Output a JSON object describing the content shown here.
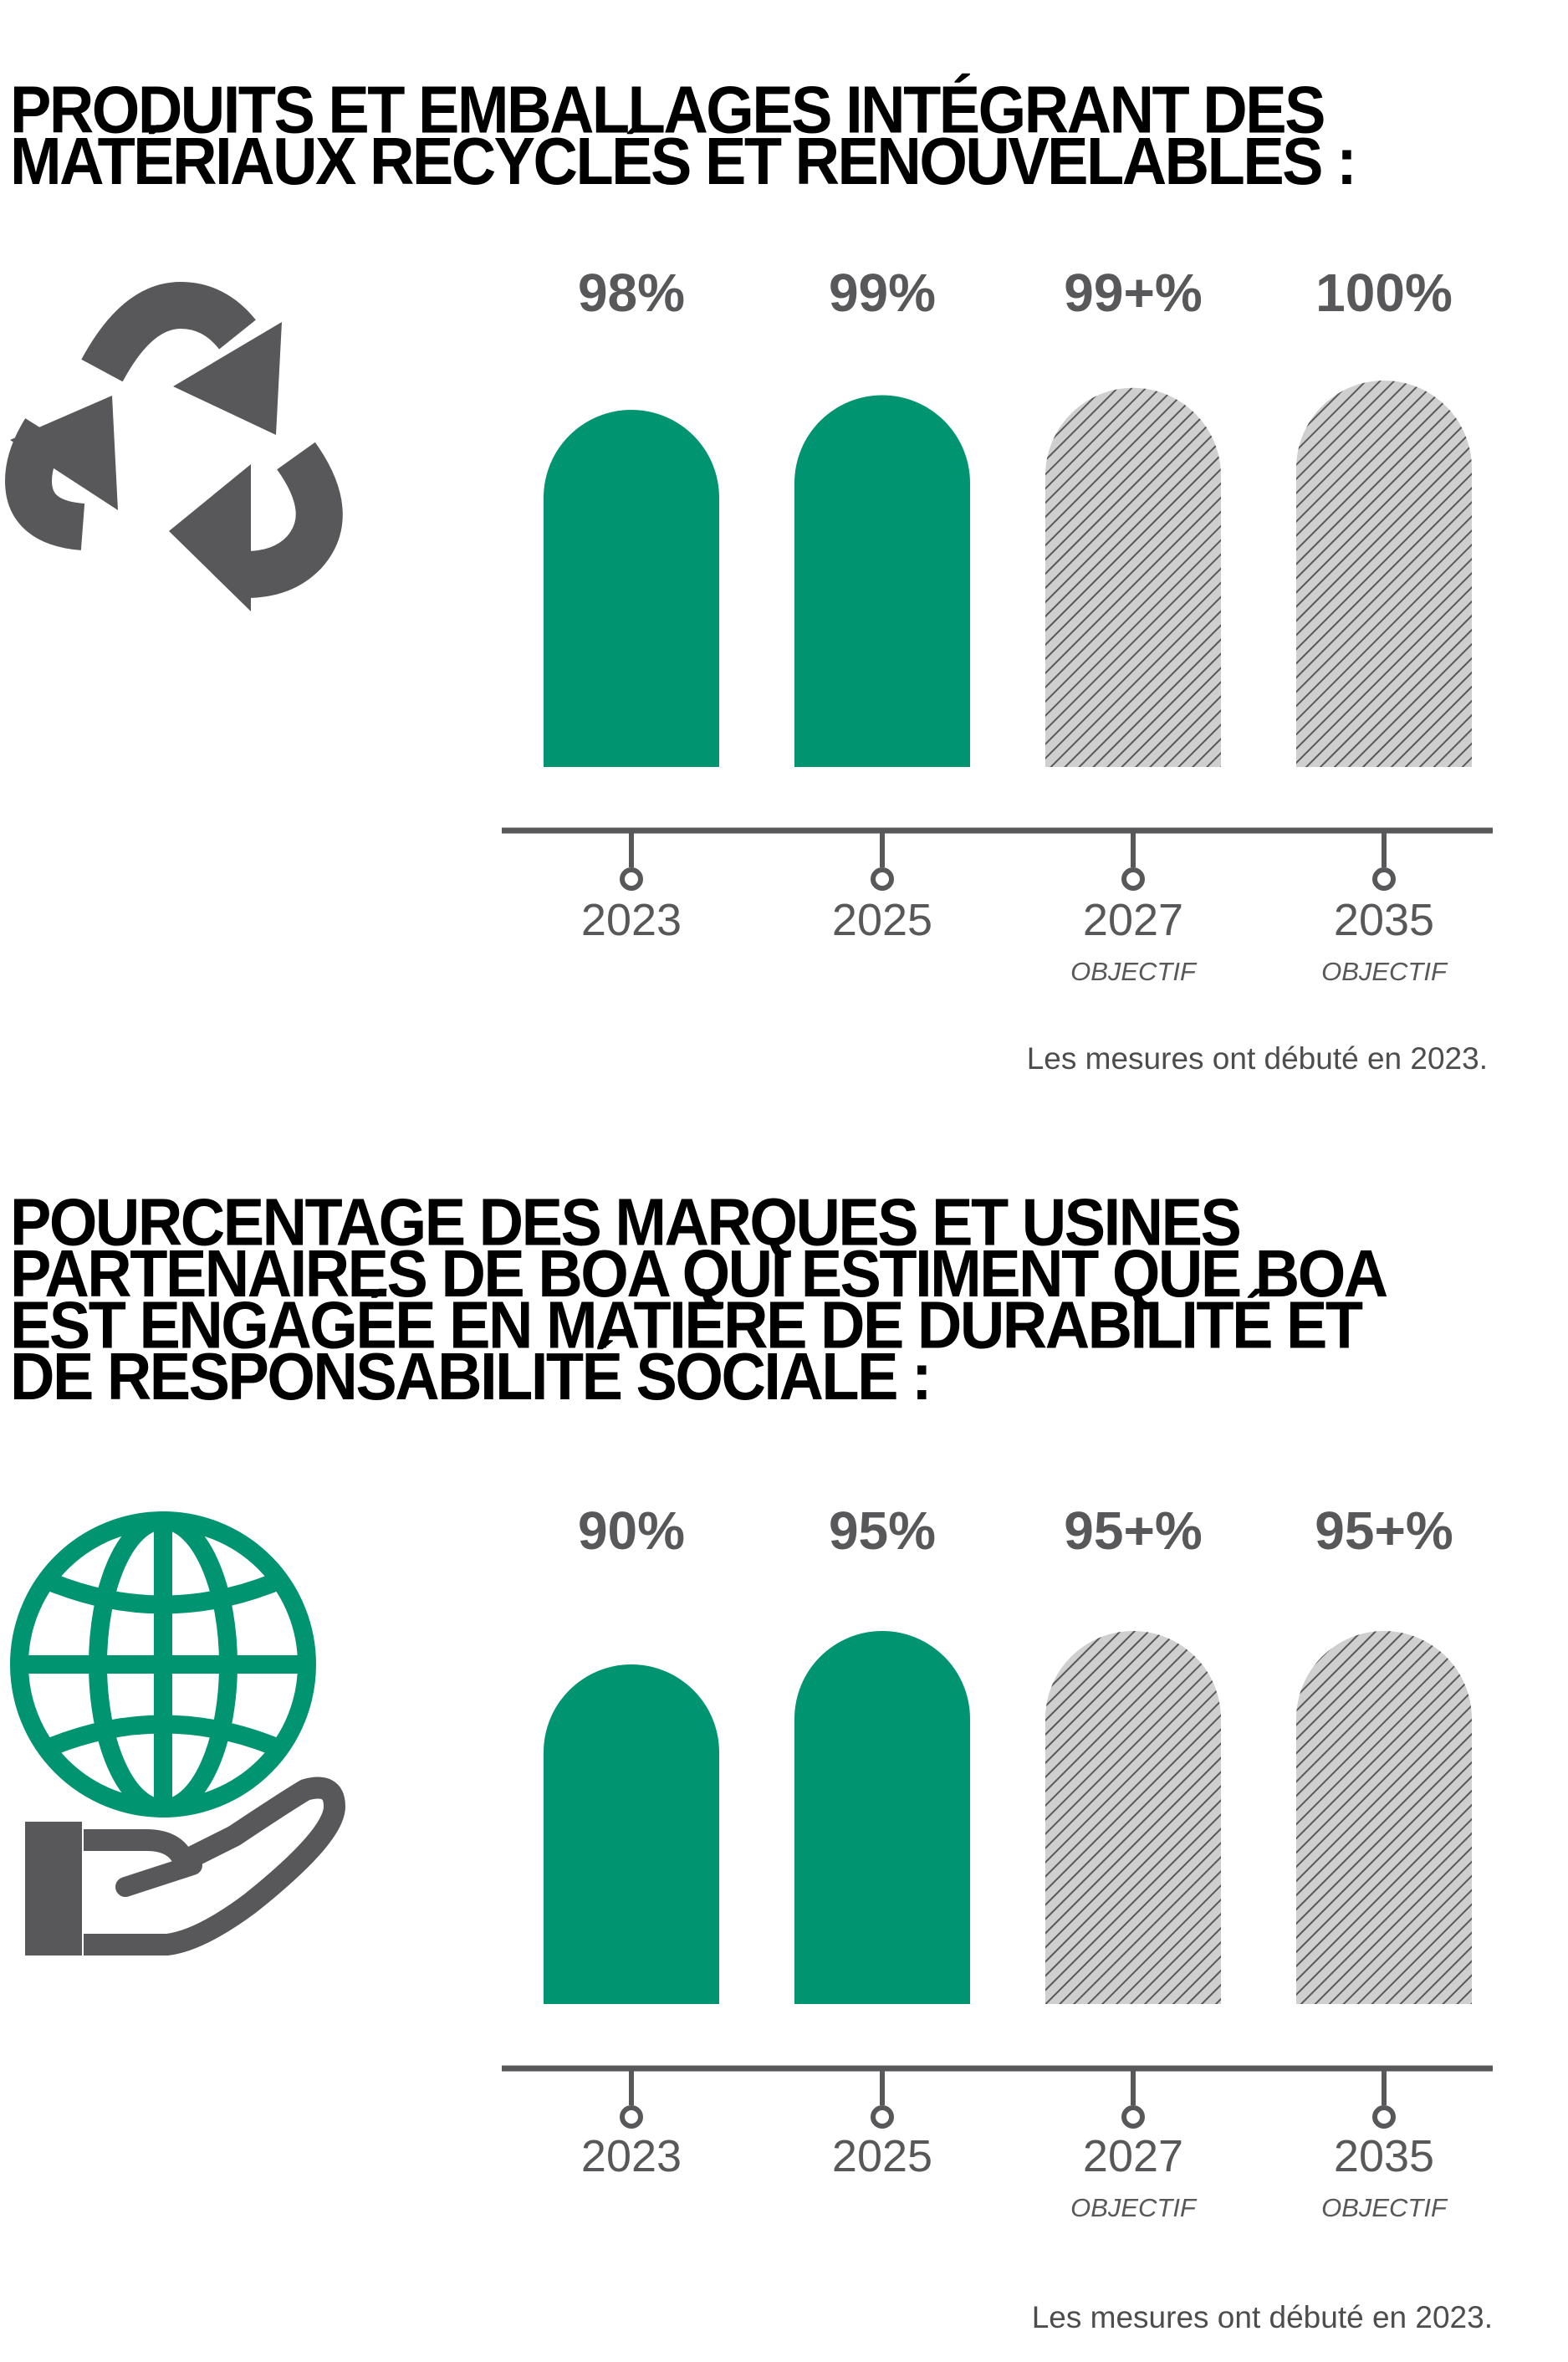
{
  "colors": {
    "actual": "#009470",
    "target_fill": "#cfcfcf",
    "target_hatch": "#58585a",
    "axis": "#58585a",
    "text_dark": "#58585a",
    "title": "#000000"
  },
  "chart_data": [
    {
      "type": "bar",
      "title": "PRODUITS ET EMBALLAGES INTÉGRANT DES MATÉRIAUX RECYCLÉS ET RENOUVELABLES :",
      "title_lines": [
        "PRODUITS ET EMBALLAGES INTÉGRANT DES",
        "MATÉRIAUX RECYCLÉS ET RENOUVELABLES :"
      ],
      "icon": "recycle-icon",
      "categories": [
        "2023",
        "2025",
        "2027",
        "2035"
      ],
      "sublabels": [
        "",
        "",
        "OBJECTIF",
        "OBJECTIF"
      ],
      "values": [
        98,
        99,
        99.5,
        100
      ],
      "value_labels": [
        "98%",
        "99%",
        "99+%",
        "100%"
      ],
      "kind": [
        "actual",
        "actual",
        "target",
        "target"
      ],
      "note": "Les mesures ont débuté en 2023."
    },
    {
      "type": "bar",
      "title": "POURCENTAGE DES MARQUES ET USINES PARTENAIRES DE BOA QUI ESTIMENT QUE BOA EST ENGAGÉE EN MATIÈRE DE DURABILITÉ ET DE RESPONSABILITÉ SOCIALE :",
      "title_lines": [
        "POURCENTAGE DES MARQUES ET USINES",
        "PARTENAIRES DE BOA QUI ESTIMENT QUE BOA",
        "EST ENGAGÉE EN MATIÈRE DE DURABILITÉ ET",
        "DE RESPONSABILITÉ SOCIALE :"
      ],
      "icon": "globe-hand-icon",
      "categories": [
        "2023",
        "2025",
        "2027",
        "2035"
      ],
      "sublabels": [
        "",
        "",
        "OBJECTIF",
        "OBJECTIF"
      ],
      "values": [
        90,
        95,
        95,
        95
      ],
      "value_labels": [
        "90%",
        "95%",
        "95+%",
        "95+%"
      ],
      "kind": [
        "actual",
        "actual",
        "target",
        "target"
      ],
      "note": "Les mesures ont débuté en 2023."
    }
  ]
}
